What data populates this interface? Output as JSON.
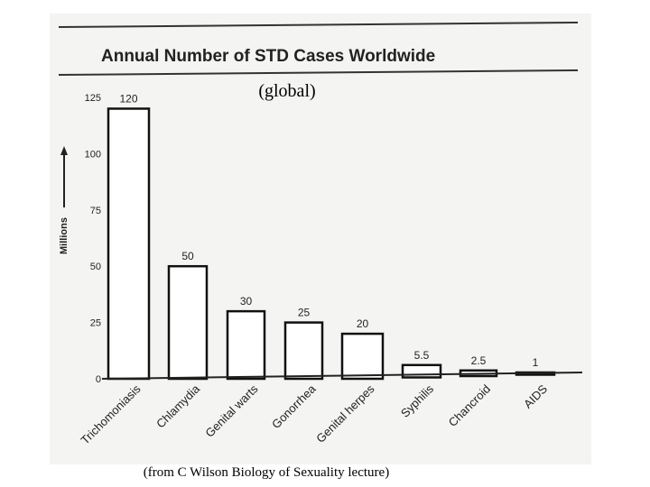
{
  "chart_data": {
    "type": "bar",
    "title": "Annual Number of STD Cases Worldwide",
    "subtitle": "(global)",
    "ylabel": "Millions",
    "xlabel": "",
    "categories": [
      "Trichomoniasis",
      "Chlamydia",
      "Genital warts",
      "Gonorrhea",
      "Genital herpes",
      "Syphilis",
      "Chancroid",
      "AIDS"
    ],
    "values": [
      120,
      50,
      30,
      25,
      20,
      5.5,
      2.5,
      1
    ],
    "value_labels": [
      "120",
      "50",
      "30",
      "25",
      "20",
      "5.5",
      "2.5",
      "1"
    ],
    "yticks": [
      0,
      25,
      50,
      75,
      100,
      125
    ],
    "ylim": [
      0,
      125
    ],
    "grid": false,
    "bar_fill": "#ffffff",
    "bar_stroke": "#111111"
  },
  "caption": "(from C Wilson Biology of Sexuality lecture)"
}
